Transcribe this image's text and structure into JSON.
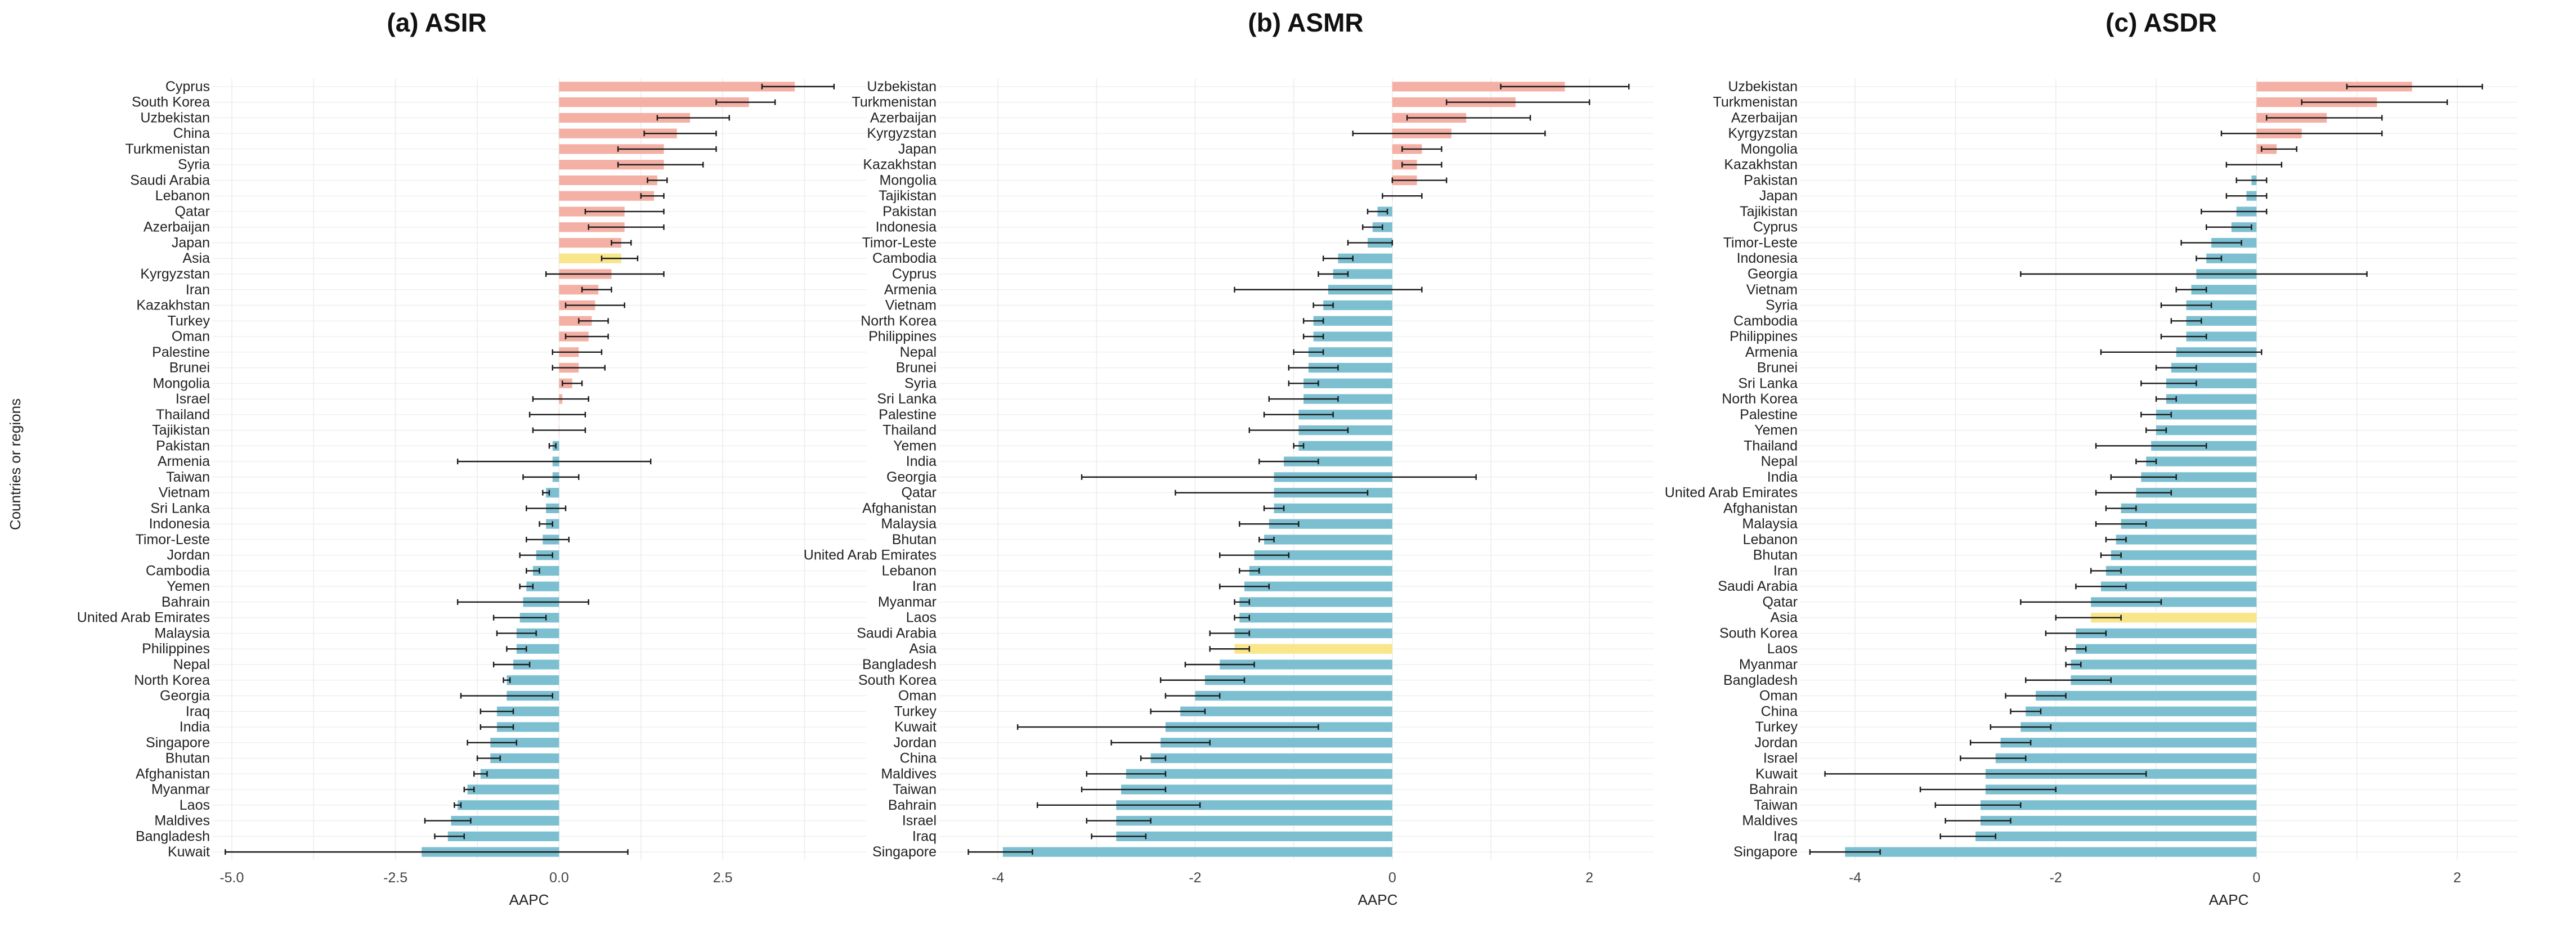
{
  "colors": {
    "positive": "#f4b0a5",
    "negative": "#7bbfd0",
    "highlight": "#f9e58a",
    "errorbar": "#1a1a1a",
    "grid": "#ececec"
  },
  "figure": {
    "ylabel": "Countries or regions"
  },
  "chart_data": [
    {
      "type": "bar",
      "orientation": "horizontal",
      "title": "(a) ASIR",
      "xlabel": "AAPC",
      "ylabel": "Countries or regions",
      "xlim": [
        -5.3,
        4.7
      ],
      "xticks": [
        -5.0,
        -2.5,
        0.0,
        2.5
      ],
      "xtick_labels": [
        "-5.0",
        "-2.5",
        "0.0",
        "2.5"
      ],
      "grid": true,
      "highlight": "Asia",
      "categories": [
        "Cyprus",
        "South Korea",
        "Uzbekistan",
        "China",
        "Turkmenistan",
        "Syria",
        "Saudi Arabia",
        "Lebanon",
        "Qatar",
        "Azerbaijan",
        "Japan",
        "Asia",
        "Kyrgyzstan",
        "Iran",
        "Kazakhstan",
        "Turkey",
        "Oman",
        "Palestine",
        "Brunei",
        "Mongolia",
        "Israel",
        "Thailand",
        "Tajikistan",
        "Pakistan",
        "Armenia",
        "Taiwan",
        "Vietnam",
        "Sri Lanka",
        "Indonesia",
        "Timor-Leste",
        "Jordan",
        "Cambodia",
        "Yemen",
        "Bahrain",
        "United Arab Emirates",
        "Malaysia",
        "Philippines",
        "Nepal",
        "North Korea",
        "Georgia",
        "Iraq",
        "India",
        "Singapore",
        "Bhutan",
        "Afghanistan",
        "Myanmar",
        "Laos",
        "Maldives",
        "Bangladesh",
        "Kuwait"
      ],
      "values": [
        3.6,
        2.9,
        2.0,
        1.8,
        1.6,
        1.6,
        1.5,
        1.45,
        1.0,
        1.0,
        0.95,
        0.95,
        0.8,
        0.6,
        0.55,
        0.5,
        0.45,
        0.3,
        0.3,
        0.2,
        0.05,
        0.0,
        0.0,
        -0.1,
        -0.1,
        -0.1,
        -0.2,
        -0.2,
        -0.2,
        -0.25,
        -0.35,
        -0.4,
        -0.5,
        -0.55,
        -0.6,
        -0.65,
        -0.65,
        -0.7,
        -0.8,
        -0.8,
        -0.95,
        -0.95,
        -1.05,
        -1.05,
        -1.2,
        -1.4,
        -1.55,
        -1.65,
        -1.7,
        -2.1
      ],
      "lower": [
        3.1,
        2.4,
        1.5,
        1.3,
        0.9,
        0.9,
        1.35,
        1.25,
        0.4,
        0.45,
        0.8,
        0.65,
        -0.2,
        0.35,
        0.1,
        0.3,
        0.1,
        -0.1,
        -0.1,
        0.05,
        -0.4,
        -0.45,
        -0.4,
        -0.15,
        -1.55,
        -0.55,
        -0.25,
        -0.5,
        -0.3,
        -0.5,
        -0.6,
        -0.5,
        -0.6,
        -1.55,
        -1.0,
        -0.95,
        -0.8,
        -1.0,
        -0.85,
        -1.5,
        -1.2,
        -1.2,
        -1.4,
        -1.25,
        -1.3,
        -1.45,
        -1.6,
        -2.05,
        -1.9,
        -5.1
      ],
      "upper": [
        4.2,
        3.3,
        2.6,
        2.4,
        2.4,
        2.2,
        1.65,
        1.6,
        1.6,
        1.6,
        1.1,
        1.2,
        1.6,
        0.8,
        1.0,
        0.75,
        0.75,
        0.65,
        0.7,
        0.35,
        0.45,
        0.4,
        0.4,
        -0.05,
        1.4,
        0.3,
        -0.15,
        0.1,
        -0.1,
        0.15,
        -0.1,
        -0.3,
        -0.4,
        0.45,
        -0.2,
        -0.35,
        -0.5,
        -0.45,
        -0.75,
        -0.1,
        -0.7,
        -0.7,
        -0.65,
        -0.9,
        -1.1,
        -1.3,
        -1.5,
        -1.35,
        -1.45,
        1.05
      ]
    },
    {
      "type": "bar",
      "orientation": "horizontal",
      "title": "(b) ASMR",
      "xlabel": "AAPC",
      "xlim": [
        -4.6,
        2.65
      ],
      "xticks": [
        -4,
        -2,
        0,
        2
      ],
      "xtick_labels": [
        "-4",
        "-2",
        "0",
        "2"
      ],
      "grid": true,
      "highlight": "Asia",
      "categories": [
        "Uzbekistan",
        "Turkmenistan",
        "Azerbaijan",
        "Kyrgyzstan",
        "Japan",
        "Kazakhstan",
        "Mongolia",
        "Tajikistan",
        "Pakistan",
        "Indonesia",
        "Timor-Leste",
        "Cambodia",
        "Cyprus",
        "Armenia",
        "Vietnam",
        "North Korea",
        "Philippines",
        "Nepal",
        "Brunei",
        "Syria",
        "Sri Lanka",
        "Palestine",
        "Thailand",
        "Yemen",
        "India",
        "Georgia",
        "Qatar",
        "Afghanistan",
        "Malaysia",
        "Bhutan",
        "United Arab Emirates",
        "Lebanon",
        "Iran",
        "Myanmar",
        "Laos",
        "Saudi Arabia",
        "Asia",
        "Bangladesh",
        "South Korea",
        "Oman",
        "Turkey",
        "Kuwait",
        "Jordan",
        "China",
        "Maldives",
        "Taiwan",
        "Bahrain",
        "Israel",
        "Iraq",
        "Singapore"
      ],
      "values": [
        1.75,
        1.25,
        0.75,
        0.6,
        0.3,
        0.25,
        0.25,
        0.0,
        -0.15,
        -0.2,
        -0.25,
        -0.55,
        -0.6,
        -0.65,
        -0.7,
        -0.8,
        -0.8,
        -0.85,
        -0.85,
        -0.9,
        -0.9,
        -0.95,
        -0.95,
        -0.95,
        -1.1,
        -1.2,
        -1.2,
        -1.2,
        -1.25,
        -1.3,
        -1.4,
        -1.45,
        -1.5,
        -1.55,
        -1.55,
        -1.6,
        -1.6,
        -1.75,
        -1.9,
        -2.0,
        -2.15,
        -2.3,
        -2.35,
        -2.45,
        -2.7,
        -2.75,
        -2.8,
        -2.8,
        -2.8,
        -3.95
      ],
      "lower": [
        1.1,
        0.55,
        0.15,
        -0.4,
        0.1,
        0.1,
        0.0,
        -0.1,
        -0.25,
        -0.3,
        -0.45,
        -0.7,
        -0.75,
        -1.6,
        -0.8,
        -0.9,
        -0.9,
        -1.0,
        -1.05,
        -1.05,
        -1.25,
        -1.3,
        -1.45,
        -1.0,
        -1.35,
        -3.15,
        -2.2,
        -1.3,
        -1.55,
        -1.35,
        -1.75,
        -1.55,
        -1.75,
        -1.6,
        -1.6,
        -1.85,
        -1.85,
        -2.1,
        -2.35,
        -2.3,
        -2.45,
        -3.8,
        -2.85,
        -2.55,
        -3.1,
        -3.15,
        -3.6,
        -3.1,
        -3.05,
        -4.3
      ],
      "upper": [
        2.4,
        2.0,
        1.4,
        1.55,
        0.5,
        0.5,
        0.55,
        0.3,
        -0.05,
        -0.1,
        0.0,
        -0.4,
        -0.45,
        0.3,
        -0.6,
        -0.7,
        -0.7,
        -0.7,
        -0.55,
        -0.75,
        -0.55,
        -0.6,
        -0.45,
        -0.9,
        -0.75,
        0.85,
        -0.25,
        -1.1,
        -0.95,
        -1.2,
        -1.05,
        -1.35,
        -1.25,
        -1.45,
        -1.45,
        -1.45,
        -1.45,
        -1.4,
        -1.5,
        -1.75,
        -1.9,
        -0.75,
        -1.85,
        -2.3,
        -2.3,
        -2.3,
        -1.95,
        -2.45,
        -2.5,
        -3.65
      ]
    },
    {
      "type": "bar",
      "orientation": "horizontal",
      "title": "(c) ASDR",
      "xlabel": "AAPC",
      "xlim": [
        -4.55,
        2.6
      ],
      "xticks": [
        -4,
        -2,
        0,
        2
      ],
      "xtick_labels": [
        "-4",
        "-2",
        "0",
        "2"
      ],
      "grid": true,
      "highlight": "Asia",
      "categories": [
        "Uzbekistan",
        "Turkmenistan",
        "Azerbaijan",
        "Kyrgyzstan",
        "Mongolia",
        "Kazakhstan",
        "Pakistan",
        "Japan",
        "Tajikistan",
        "Cyprus",
        "Timor-Leste",
        "Indonesia",
        "Georgia",
        "Vietnam",
        "Syria",
        "Cambodia",
        "Philippines",
        "Armenia",
        "Brunei",
        "Sri Lanka",
        "North Korea",
        "Palestine",
        "Yemen",
        "Thailand",
        "Nepal",
        "India",
        "United Arab Emirates",
        "Afghanistan",
        "Malaysia",
        "Lebanon",
        "Bhutan",
        "Iran",
        "Saudi Arabia",
        "Qatar",
        "Asia",
        "South Korea",
        "Laos",
        "Myanmar",
        "Bangladesh",
        "Oman",
        "China",
        "Turkey",
        "Jordan",
        "Israel",
        "Kuwait",
        "Bahrain",
        "Taiwan",
        "Maldives",
        "Iraq",
        "Singapore"
      ],
      "values": [
        1.55,
        1.2,
        0.7,
        0.45,
        0.2,
        0.0,
        -0.05,
        -0.1,
        -0.2,
        -0.25,
        -0.45,
        -0.5,
        -0.6,
        -0.65,
        -0.7,
        -0.7,
        -0.7,
        -0.8,
        -0.85,
        -0.9,
        -0.9,
        -1.0,
        -1.0,
        -1.05,
        -1.1,
        -1.15,
        -1.2,
        -1.35,
        -1.35,
        -1.4,
        -1.45,
        -1.5,
        -1.55,
        -1.65,
        -1.65,
        -1.8,
        -1.8,
        -1.85,
        -1.85,
        -2.2,
        -2.3,
        -2.35,
        -2.55,
        -2.6,
        -2.7,
        -2.7,
        -2.75,
        -2.75,
        -2.8,
        -4.1
      ],
      "lower": [
        0.9,
        0.45,
        0.1,
        -0.35,
        0.05,
        -0.3,
        -0.2,
        -0.3,
        -0.55,
        -0.5,
        -0.75,
        -0.6,
        -2.35,
        -0.8,
        -0.95,
        -0.85,
        -0.95,
        -1.55,
        -1.0,
        -1.15,
        -1.0,
        -1.15,
        -1.1,
        -1.6,
        -1.2,
        -1.45,
        -1.6,
        -1.5,
        -1.6,
        -1.5,
        -1.55,
        -1.65,
        -1.8,
        -2.35,
        -2.0,
        -2.1,
        -1.9,
        -1.9,
        -2.3,
        -2.5,
        -2.45,
        -2.65,
        -2.85,
        -2.95,
        -4.3,
        -3.35,
        -3.2,
        -3.1,
        -3.15,
        -4.45
      ],
      "upper": [
        2.25,
        1.9,
        1.25,
        1.25,
        0.4,
        0.25,
        0.1,
        0.1,
        0.1,
        -0.05,
        -0.15,
        -0.35,
        1.1,
        -0.5,
        -0.45,
        -0.55,
        -0.5,
        0.05,
        -0.6,
        -0.6,
        -0.8,
        -0.85,
        -0.9,
        -0.5,
        -1.0,
        -0.8,
        -0.85,
        -1.2,
        -1.1,
        -1.3,
        -1.35,
        -1.35,
        -1.3,
        -0.95,
        -1.35,
        -1.5,
        -1.7,
        -1.75,
        -1.45,
        -1.9,
        -2.15,
        -2.05,
        -2.25,
        -2.3,
        -1.1,
        -2.0,
        -2.35,
        -2.45,
        -2.6,
        -3.75
      ]
    }
  ]
}
